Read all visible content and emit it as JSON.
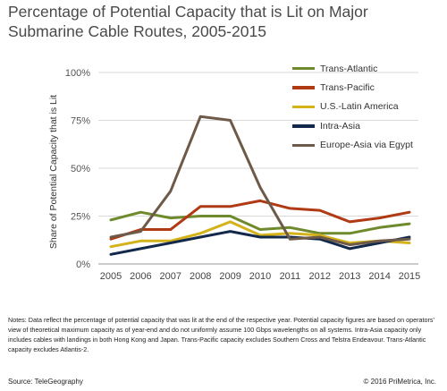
{
  "chart_data": {
    "type": "line",
    "title_lines": [
      "Percentage of Potential Capacity that is Lit on Major",
      "Submarine Cable Routes, 2005-2015"
    ],
    "xlabel": "",
    "ylabel": "Share of Potential Capacity that is Lit",
    "x": [
      2005,
      2006,
      2007,
      2008,
      2009,
      2010,
      2011,
      2012,
      2013,
      2014,
      2015
    ],
    "x_tick_labels": [
      "2005",
      "2006",
      "2007",
      "2008",
      "2009",
      "2010",
      "2011",
      "2012",
      "2013",
      "2014",
      "2015"
    ],
    "ylim": [
      0,
      100
    ],
    "y_ticks": [
      0,
      25,
      50,
      75,
      100
    ],
    "y_tick_labels": [
      "0%",
      "25%",
      "50%",
      "75%",
      "100%"
    ],
    "grid": "horizontal",
    "legend_position": "top-right",
    "series": [
      {
        "name": "Trans-Atlantic",
        "color": "#6f8a2c",
        "values": [
          23,
          27,
          24,
          25,
          25,
          18,
          19,
          16,
          16,
          19,
          21
        ]
      },
      {
        "name": "Trans-Pacific",
        "color": "#b03a14",
        "values": [
          13,
          18,
          18,
          30,
          30,
          33,
          29,
          28,
          22,
          24,
          27
        ]
      },
      {
        "name": "U.S.-Latin America",
        "color": "#d4b21a",
        "values": [
          9,
          12,
          12,
          16,
          22,
          15,
          16,
          15,
          11,
          12,
          11
        ]
      },
      {
        "name": "Intra-Asia",
        "color": "#13294b",
        "values": [
          5,
          8,
          11,
          14,
          17,
          14,
          14,
          13,
          8,
          11,
          14
        ]
      },
      {
        "name": "Europe-Asia via Egypt",
        "color": "#6e5a48",
        "values": [
          14,
          17,
          38,
          77,
          75,
          40,
          13,
          14,
          10,
          12,
          13
        ]
      }
    ]
  },
  "notes": "Notes: Data reflect the percentage of potential capacity that was lit at the end of the respective year. Potential capacity figures are based on operators' view of theoretical maximum capacity as of year-end and do not uniformly assume 100 Gbps wavelengths on all systems. Intra-Asia capacity only includes cables with landings in both Hong Kong and Japan. Trans-Pacific capacity excludes Southern Cross and Telstra Endeavour. Trans-Atlantic capacity excludes Atlantis-2.",
  "source": "Source: TeleGeography",
  "copyright": "© 2016 PriMetrica, Inc."
}
